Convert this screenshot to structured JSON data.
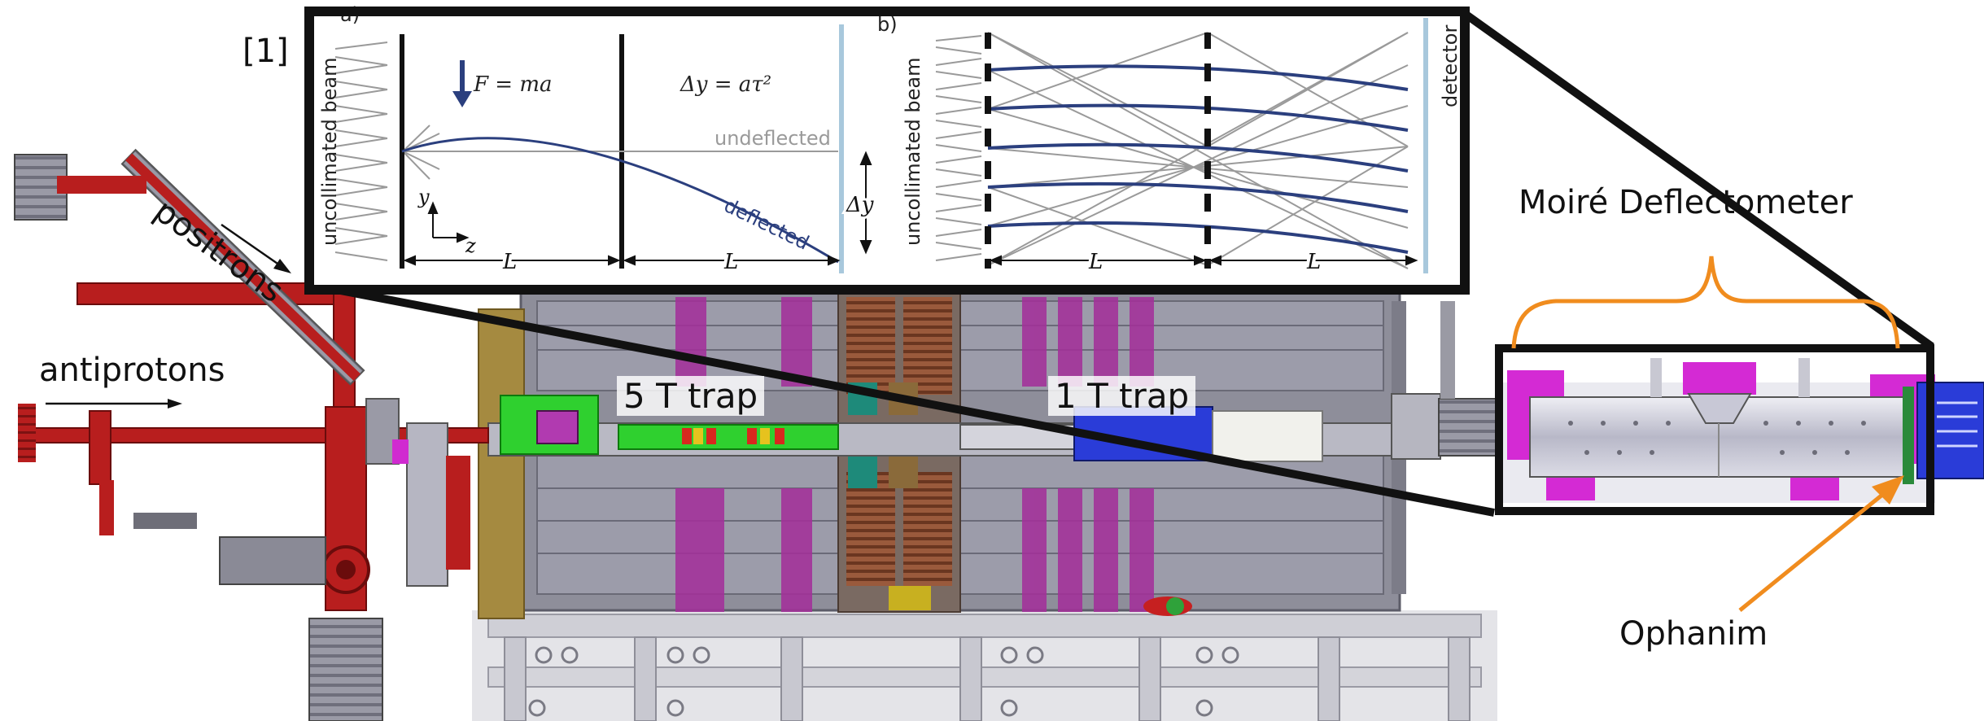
{
  "labels": {
    "reference": "[1]",
    "antiprotons": "antiprotons",
    "positrons": "positrons",
    "trap_5t": "5 T trap",
    "trap_1t": "1 T trap",
    "moire_deflectometer": "Moiré Deflectometer",
    "ophanim": "Ophanim"
  },
  "inset": {
    "panel_a": {
      "tag": "a)",
      "beam_label": "uncollimated beam",
      "force": "F = ma",
      "deflection_formula": "Δy = aτ²",
      "undeflected": "undeflected",
      "deflected": "deflected",
      "delta_y": "Δy",
      "axis_y": "y",
      "axis_z": "z",
      "length_1": "L",
      "length_2": "L"
    },
    "panel_b": {
      "tag": "b)",
      "beam_label": "uncollimated beam",
      "detector": "detector",
      "length_1": "L",
      "length_2": "L"
    }
  },
  "colors": {
    "beamline_red": "#b81e1e",
    "magnet_gray": "#8e8e9a",
    "coil_magenta": "#a3309a",
    "trap_green": "#2fd02f",
    "trap_blue": "#2a3cd8",
    "callout_orange": "#f08c1e",
    "deflected_navy": "#2b3f7e"
  }
}
